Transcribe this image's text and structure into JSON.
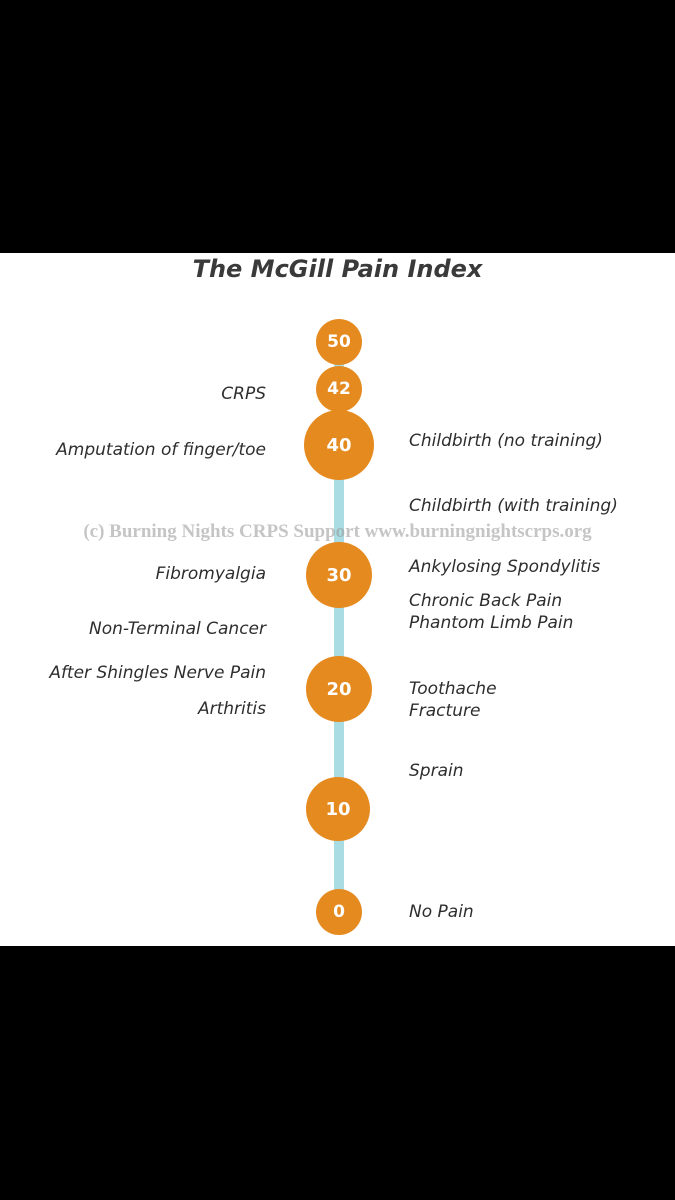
{
  "title": "The McGill Pain Index",
  "watermark": "(c) Burning Nights CRPS Support  www.burningnightscrps.org",
  "colors": {
    "node": "#e58a1f",
    "axis": "#a9dde3",
    "text": "#2e2e2e",
    "frame": "#000000"
  },
  "scale": {
    "nodes": [
      "50",
      "42",
      "40",
      "30",
      "20",
      "10",
      "0"
    ],
    "left_labels": [
      "CRPS",
      "Amputation of finger/toe",
      "Fibromyalgia",
      "Non-Terminal Cancer",
      "After Shingles Nerve Pain",
      "Arthritis"
    ],
    "right_labels": [
      "Childbirth (no training)",
      "Childbirth (with training)",
      "Ankylosing Spondylitis",
      "Chronic Back Pain",
      "Phantom Limb Pain",
      "Toothache",
      "Fracture",
      "Sprain",
      "No Pain"
    ]
  }
}
